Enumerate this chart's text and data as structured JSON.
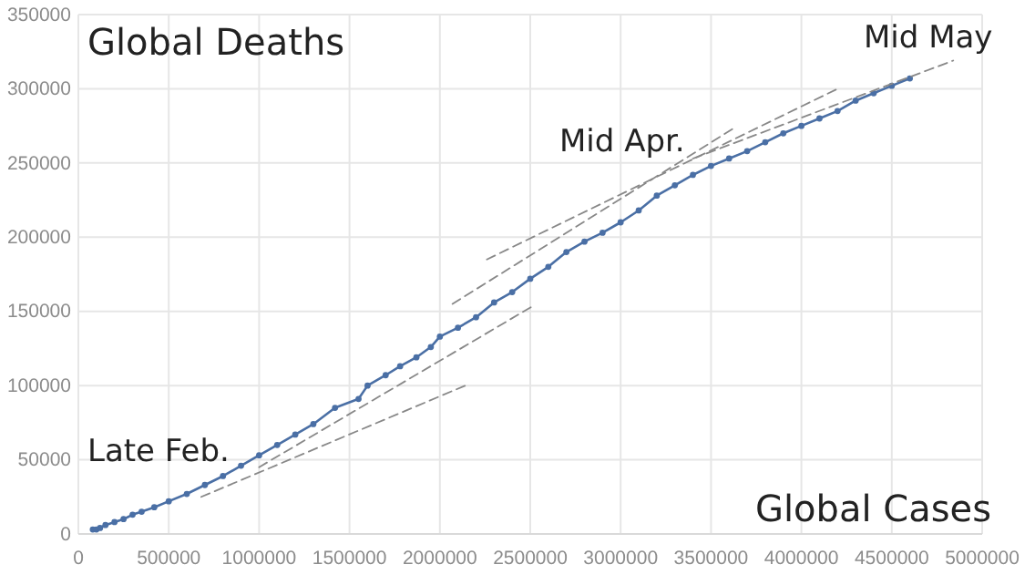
{
  "chart_data": {
    "type": "line",
    "xlabel": "Global Cases",
    "ylabel": "Global Deaths",
    "xlim": [
      0,
      5000000
    ],
    "xticks": [
      0,
      500000,
      1000000,
      1500000,
      2000000,
      2500000,
      3000000,
      3500000,
      4000000,
      4500000,
      5000000
    ],
    "ylim": [
      0,
      350000
    ],
    "yticks": [
      0,
      50000,
      100000,
      150000,
      200000,
      250000,
      300000,
      350000
    ],
    "grid": true,
    "marker": "circle",
    "line_style": "solid",
    "annotations": [
      "Late Feb.",
      "Mid Apr.",
      "Mid May"
    ],
    "series": [
      {
        "color": "#4a6fa5",
        "x": [
          80000,
          100000,
          120000,
          150000,
          200000,
          250000,
          300000,
          350000,
          420000,
          500000,
          600000,
          700000,
          800000,
          900000,
          1000000,
          1100000,
          1200000,
          1300000,
          1420000,
          1550000,
          1600000,
          1700000,
          1780000,
          1870000,
          1950000,
          2000000,
          2100000,
          2200000,
          2300000,
          2400000,
          2500000,
          2600000,
          2700000,
          2800000,
          2900000,
          3000000,
          3100000,
          3200000,
          3300000,
          3400000,
          3500000,
          3600000,
          3700000,
          3800000,
          3900000,
          4000000,
          4100000,
          4200000,
          4300000,
          4400000,
          4500000,
          4600000
        ],
        "values": [
          3000,
          3000,
          4000,
          6000,
          8000,
          10000,
          13000,
          15000,
          18000,
          22000,
          27000,
          33000,
          39000,
          46000,
          53000,
          60000,
          67000,
          74000,
          85000,
          91000,
          100000,
          107000,
          113000,
          119000,
          126000,
          133000,
          139000,
          146000,
          156000,
          163000,
          172000,
          180000,
          190000,
          197000,
          203000,
          210000,
          218000,
          228000,
          235000,
          242000,
          248000,
          253000,
          258000,
          264000,
          270000,
          275000,
          280000,
          285000,
          292000,
          297000,
          302000,
          307000
        ]
      },
      {
        "color": "#888888",
        "type": "line",
        "marker": "none",
        "line_style": "dashed",
        "x": [
          680000,
          2160000
        ],
        "values": [
          25000,
          101000
        ]
      },
      {
        "color": "#888888",
        "type": "line",
        "marker": "none",
        "line_style": "dashed",
        "x": [
          1000000,
          2520000
        ],
        "values": [
          45000,
          154000
        ]
      },
      {
        "color": "#888888",
        "type": "line",
        "marker": "none",
        "line_style": "dashed",
        "x": [
          2070000,
          3620000
        ],
        "values": [
          155000,
          273000
        ]
      },
      {
        "color": "#888888",
        "type": "line",
        "marker": "none",
        "line_style": "dashed",
        "x": [
          2260000,
          4200000
        ],
        "values": [
          185000,
          300000
        ]
      },
      {
        "color": "#888888",
        "type": "line",
        "marker": "none",
        "line_style": "dashed",
        "x": [
          3400000,
          4840000
        ],
        "values": [
          253000,
          319000
        ]
      }
    ]
  }
}
